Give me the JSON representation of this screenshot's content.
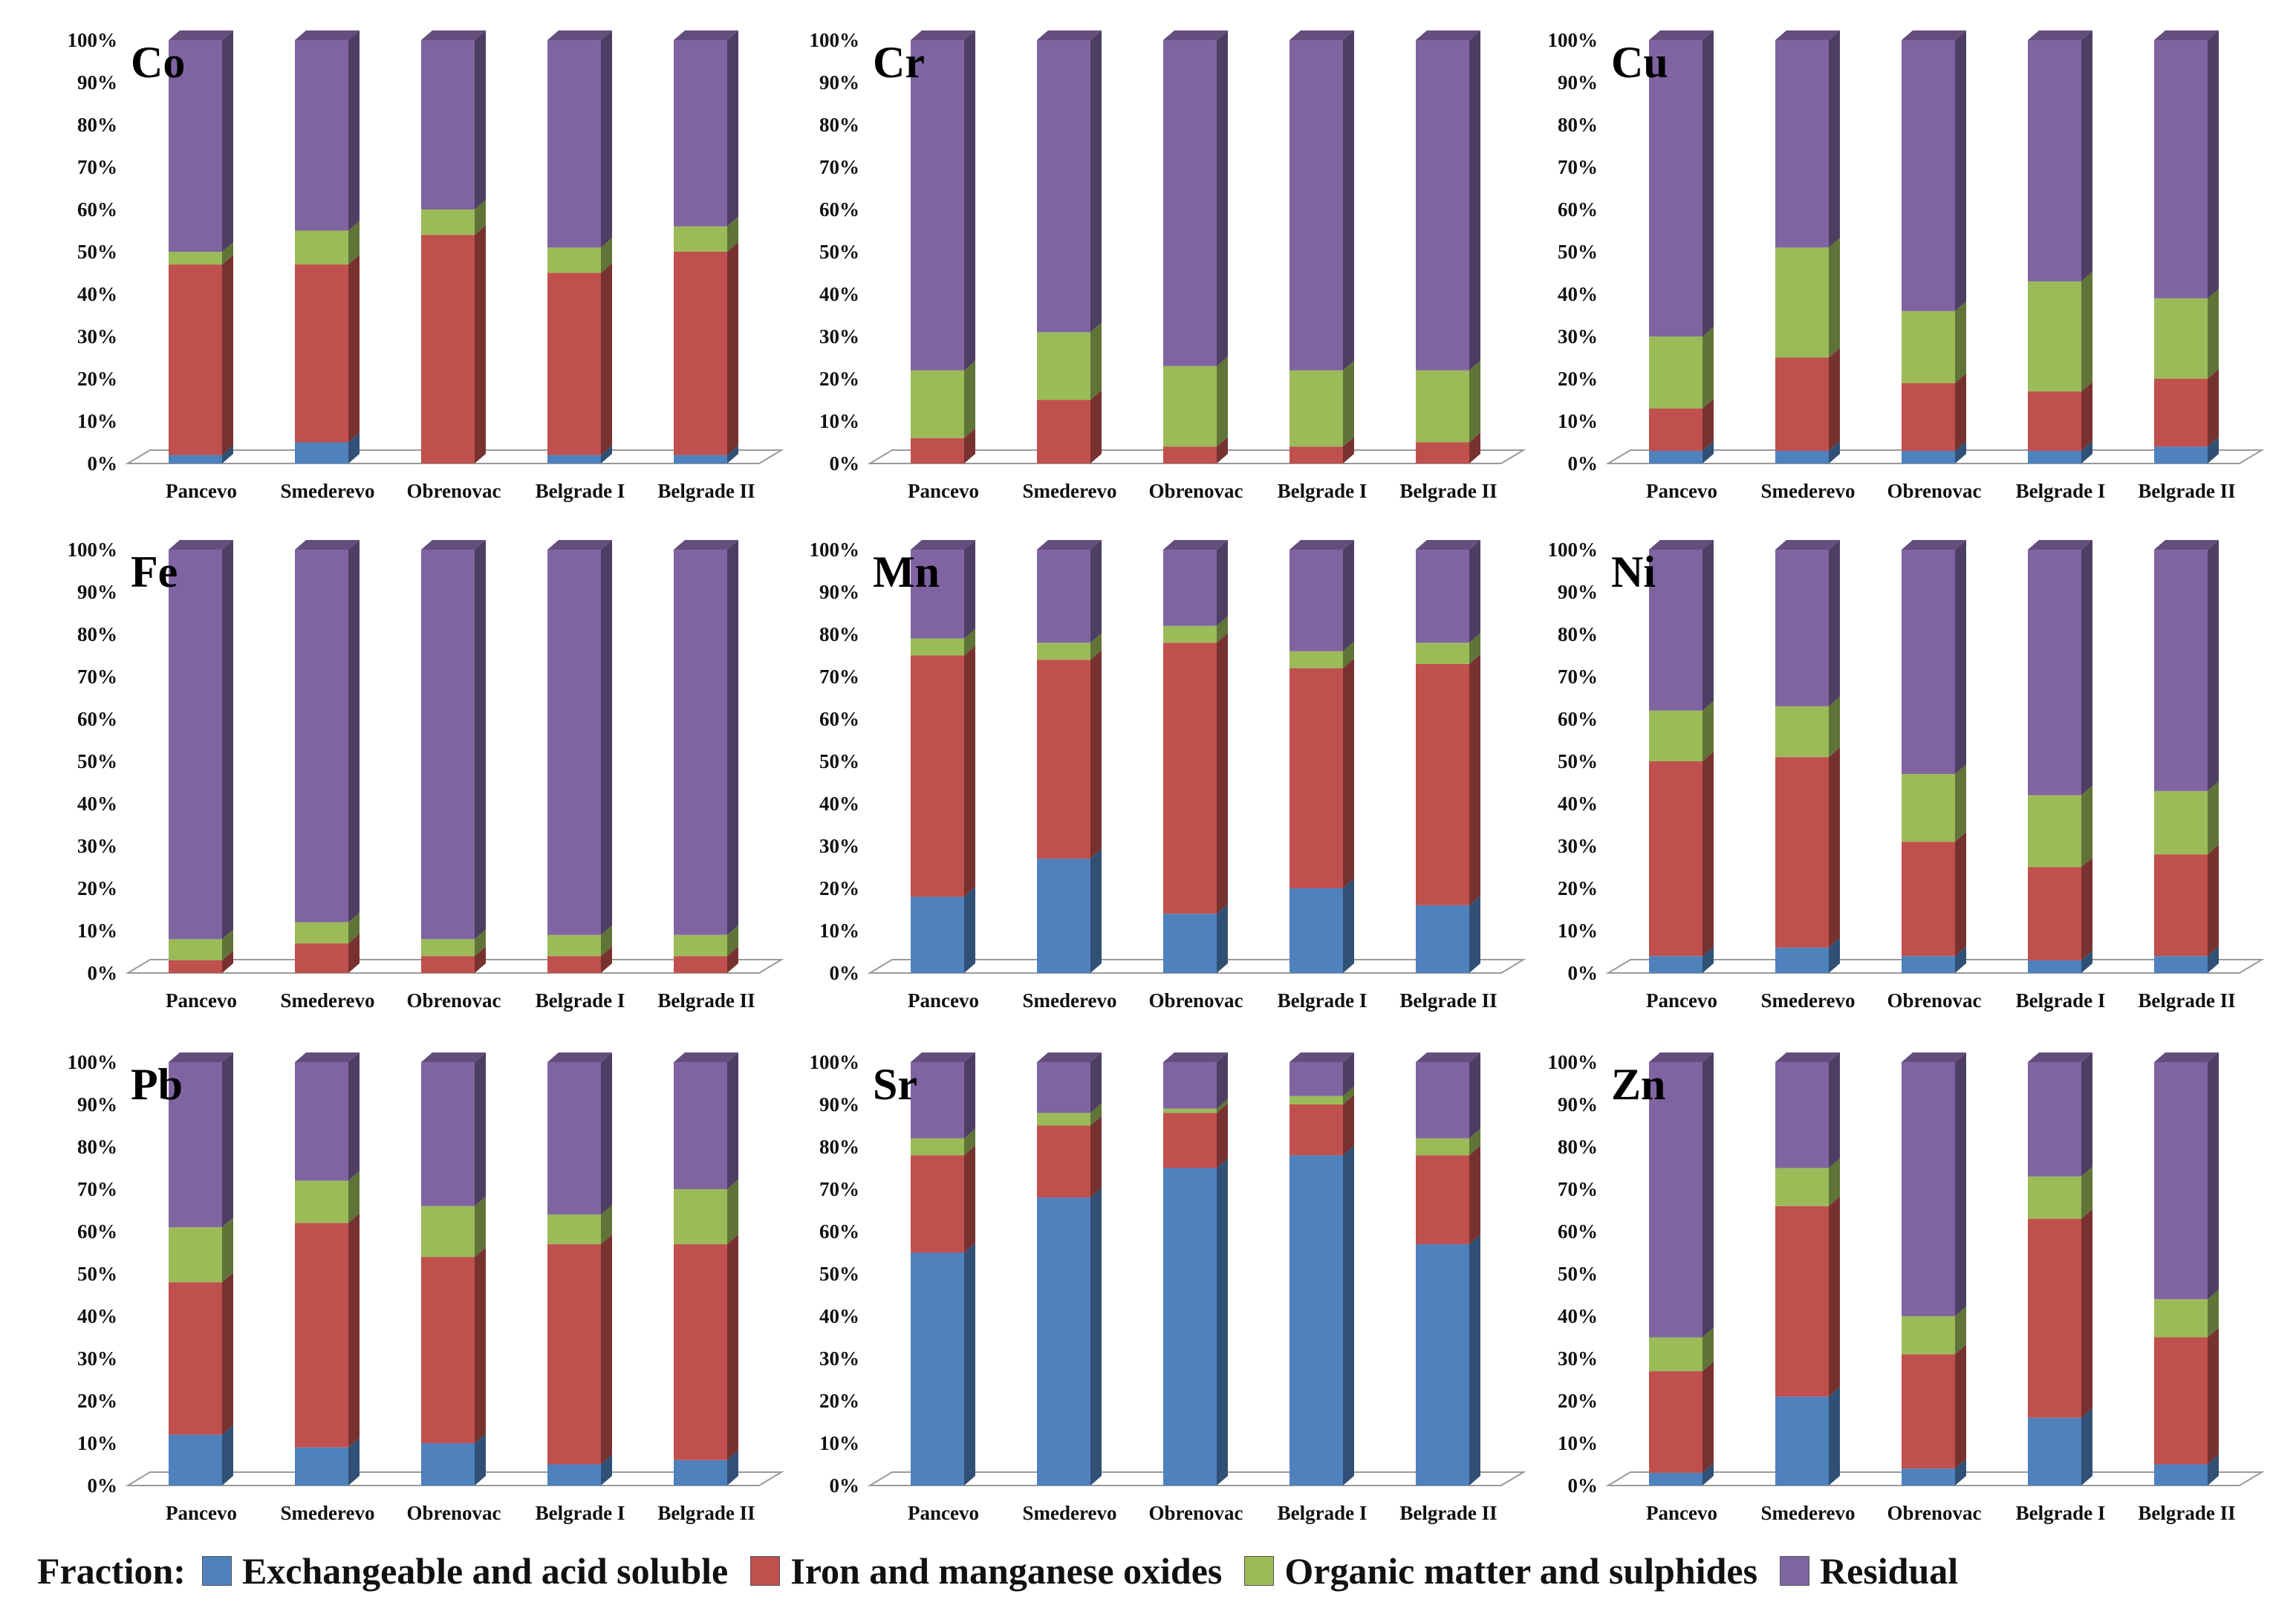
{
  "legend": {
    "title": "Fraction:",
    "items": [
      {
        "label": "Exchangeable and acid soluble",
        "color": "#4f81bd"
      },
      {
        "label": "Iron and manganese oxides",
        "color": "#c0504d"
      },
      {
        "label": "Organic matter and sulphides",
        "color": "#9bbb59"
      },
      {
        "label": "Residual",
        "color": "#8064a2"
      }
    ]
  },
  "chart_data": [
    {
      "type": "bar",
      "stacked": true,
      "title": "Co",
      "categories": [
        "Pancevo",
        "Smederevo",
        "Obrenovac",
        "Belgrade I",
        "Belgrade II"
      ],
      "ylim": [
        0,
        100
      ],
      "yticks": [
        "0%",
        "10%",
        "20%",
        "30%",
        "40%",
        "50%",
        "60%",
        "70%",
        "80%",
        "90%",
        "100%"
      ],
      "series": [
        {
          "name": "Exchangeable and acid soluble",
          "values": [
            2,
            5,
            0,
            2,
            2
          ]
        },
        {
          "name": "Iron and manganese oxides",
          "values": [
            45,
            42,
            54,
            43,
            48
          ]
        },
        {
          "name": "Organic matter and sulphides",
          "values": [
            3,
            8,
            6,
            6,
            6
          ]
        },
        {
          "name": "Residual",
          "values": [
            50,
            45,
            40,
            49,
            44
          ]
        }
      ]
    },
    {
      "type": "bar",
      "stacked": true,
      "title": "Cr",
      "categories": [
        "Pancevo",
        "Smederevo",
        "Obrenovac",
        "Belgrade I",
        "Belgrade II"
      ],
      "ylim": [
        0,
        100
      ],
      "yticks": [
        "0%",
        "10%",
        "20%",
        "30%",
        "40%",
        "50%",
        "60%",
        "70%",
        "80%",
        "90%",
        "100%"
      ],
      "series": [
        {
          "name": "Exchangeable and acid soluble",
          "values": [
            0,
            0,
            0,
            0,
            0
          ]
        },
        {
          "name": "Iron and manganese oxides",
          "values": [
            6,
            15,
            4,
            4,
            5
          ]
        },
        {
          "name": "Organic matter and sulphides",
          "values": [
            16,
            16,
            19,
            18,
            17
          ]
        },
        {
          "name": "Residual",
          "values": [
            78,
            69,
            77,
            78,
            78
          ]
        }
      ]
    },
    {
      "type": "bar",
      "stacked": true,
      "title": "Cu",
      "categories": [
        "Pancevo",
        "Smederevo",
        "Obrenovac",
        "Belgrade I",
        "Belgrade II"
      ],
      "ylim": [
        0,
        100
      ],
      "yticks": [
        "0%",
        "10%",
        "20%",
        "30%",
        "40%",
        "50%",
        "60%",
        "70%",
        "80%",
        "90%",
        "100%"
      ],
      "series": [
        {
          "name": "Exchangeable and acid soluble",
          "values": [
            3,
            3,
            3,
            3,
            4
          ]
        },
        {
          "name": "Iron and manganese oxides",
          "values": [
            10,
            22,
            16,
            14,
            16
          ]
        },
        {
          "name": "Organic matter and sulphides",
          "values": [
            17,
            26,
            17,
            26,
            19
          ]
        },
        {
          "name": "Residual",
          "values": [
            70,
            49,
            64,
            57,
            61
          ]
        }
      ]
    },
    {
      "type": "bar",
      "stacked": true,
      "title": "Fe",
      "categories": [
        "Pancevo",
        "Smederevo",
        "Obrenovac",
        "Belgrade I",
        "Belgrade II"
      ],
      "ylim": [
        0,
        100
      ],
      "yticks": [
        "0%",
        "10%",
        "20%",
        "30%",
        "40%",
        "50%",
        "60%",
        "70%",
        "80%",
        "90%",
        "100%"
      ],
      "series": [
        {
          "name": "Exchangeable and acid soluble",
          "values": [
            0,
            0,
            0,
            0,
            0
          ]
        },
        {
          "name": "Iron and manganese oxides",
          "values": [
            3,
            7,
            4,
            4,
            4
          ]
        },
        {
          "name": "Organic matter and sulphides",
          "values": [
            5,
            5,
            4,
            5,
            5
          ]
        },
        {
          "name": "Residual",
          "values": [
            92,
            88,
            92,
            91,
            91
          ]
        }
      ]
    },
    {
      "type": "bar",
      "stacked": true,
      "title": "Mn",
      "categories": [
        "Pancevo",
        "Smederevo",
        "Obrenovac",
        "Belgrade I",
        "Belgrade II"
      ],
      "ylim": [
        0,
        100
      ],
      "yticks": [
        "0%",
        "10%",
        "20%",
        "30%",
        "40%",
        "50%",
        "60%",
        "70%",
        "80%",
        "90%",
        "100%"
      ],
      "series": [
        {
          "name": "Exchangeable and acid soluble",
          "values": [
            18,
            27,
            14,
            20,
            16
          ]
        },
        {
          "name": "Iron and manganese oxides",
          "values": [
            57,
            47,
            64,
            52,
            57
          ]
        },
        {
          "name": "Organic matter and sulphides",
          "values": [
            4,
            4,
            4,
            4,
            5
          ]
        },
        {
          "name": "Residual",
          "values": [
            21,
            22,
            18,
            24,
            22
          ]
        }
      ]
    },
    {
      "type": "bar",
      "stacked": true,
      "title": "Ni",
      "categories": [
        "Pancevo",
        "Smederevo",
        "Obrenovac",
        "Belgrade I",
        "Belgrade II"
      ],
      "ylim": [
        0,
        100
      ],
      "yticks": [
        "0%",
        "10%",
        "20%",
        "30%",
        "40%",
        "50%",
        "60%",
        "70%",
        "80%",
        "90%",
        "100%"
      ],
      "series": [
        {
          "name": "Exchangeable and acid soluble",
          "values": [
            4,
            6,
            4,
            3,
            4
          ]
        },
        {
          "name": "Iron and manganese oxides",
          "values": [
            46,
            45,
            27,
            22,
            24
          ]
        },
        {
          "name": "Organic matter and sulphides",
          "values": [
            12,
            12,
            16,
            17,
            15
          ]
        },
        {
          "name": "Residual",
          "values": [
            38,
            37,
            53,
            58,
            57
          ]
        }
      ]
    },
    {
      "type": "bar",
      "stacked": true,
      "title": "Pb",
      "categories": [
        "Pancevo",
        "Smederevo",
        "Obrenovac",
        "Belgrade I",
        "Belgrade II"
      ],
      "ylim": [
        0,
        100
      ],
      "yticks": [
        "0%",
        "10%",
        "20%",
        "30%",
        "40%",
        "50%",
        "60%",
        "70%",
        "80%",
        "90%",
        "100%"
      ],
      "series": [
        {
          "name": "Exchangeable and acid soluble",
          "values": [
            12,
            9,
            10,
            5,
            6
          ]
        },
        {
          "name": "Iron and manganese oxides",
          "values": [
            36,
            53,
            44,
            52,
            51
          ]
        },
        {
          "name": "Organic matter and sulphides",
          "values": [
            13,
            10,
            12,
            7,
            13
          ]
        },
        {
          "name": "Residual",
          "values": [
            39,
            28,
            34,
            36,
            30
          ]
        }
      ]
    },
    {
      "type": "bar",
      "stacked": true,
      "title": "Sr",
      "categories": [
        "Pancevo",
        "Smederevo",
        "Obrenovac",
        "Belgrade I",
        "Belgrade II"
      ],
      "ylim": [
        0,
        100
      ],
      "yticks": [
        "0%",
        "10%",
        "20%",
        "30%",
        "40%",
        "50%",
        "60%",
        "70%",
        "80%",
        "90%",
        "100%"
      ],
      "series": [
        {
          "name": "Exchangeable and acid soluble",
          "values": [
            55,
            68,
            75,
            78,
            57
          ]
        },
        {
          "name": "Iron and manganese oxides",
          "values": [
            23,
            17,
            13,
            12,
            21
          ]
        },
        {
          "name": "Organic matter and sulphides",
          "values": [
            4,
            3,
            1,
            2,
            4
          ]
        },
        {
          "name": "Residual",
          "values": [
            18,
            12,
            11,
            8,
            18
          ]
        }
      ]
    },
    {
      "type": "bar",
      "stacked": true,
      "title": "Zn",
      "categories": [
        "Pancevo",
        "Smederevo",
        "Obrenovac",
        "Belgrade I",
        "Belgrade II"
      ],
      "ylim": [
        0,
        100
      ],
      "yticks": [
        "0%",
        "10%",
        "20%",
        "30%",
        "40%",
        "50%",
        "60%",
        "70%",
        "80%",
        "90%",
        "100%"
      ],
      "series": [
        {
          "name": "Exchangeable and acid soluble",
          "values": [
            3,
            21,
            4,
            16,
            5
          ]
        },
        {
          "name": "Iron and manganese oxides",
          "values": [
            24,
            45,
            27,
            47,
            30
          ]
        },
        {
          "name": "Organic matter and sulphides",
          "values": [
            8,
            9,
            9,
            10,
            9
          ]
        },
        {
          "name": "Residual",
          "values": [
            65,
            25,
            60,
            27,
            56
          ]
        }
      ]
    }
  ]
}
